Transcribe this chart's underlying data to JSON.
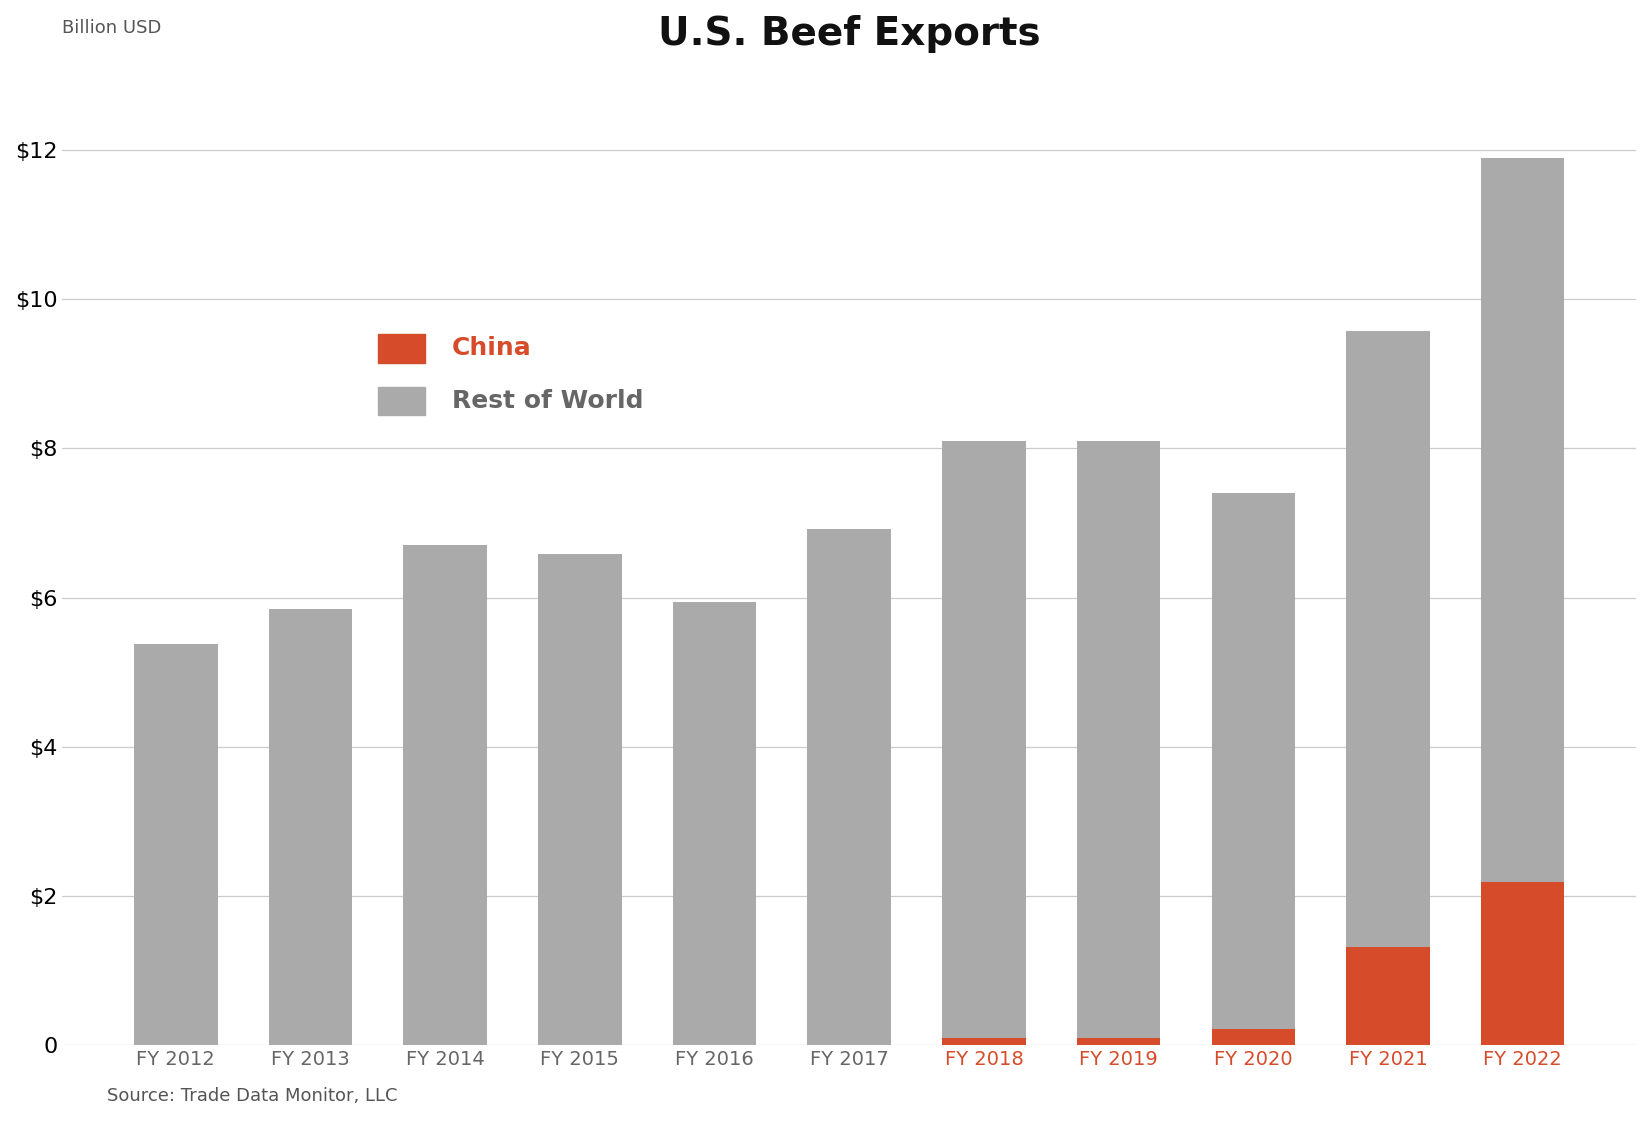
{
  "categories": [
    "FY 2012",
    "FY 2013",
    "FY 2014",
    "FY 2015",
    "FY 2016",
    "FY 2017",
    "FY 2018",
    "FY 2019",
    "FY 2020",
    "FY 2021",
    "FY 2022"
  ],
  "china": [
    0.0,
    0.0,
    0.0,
    0.0,
    0.0,
    0.0,
    0.1,
    0.1,
    0.22,
    1.32,
    2.18
  ],
  "rest_of_world": [
    5.38,
    5.84,
    6.7,
    6.58,
    5.94,
    6.92,
    8.0,
    8.0,
    7.18,
    8.25,
    9.72
  ],
  "china_color": "#d64c2a",
  "row_color": "#aaaaaa",
  "title": "U.S. Beef Exports",
  "title_fontsize": 28,
  "ylabel": "Billion USD",
  "ylabel_fontsize": 13,
  "ylim": [
    0,
    13.0
  ],
  "yticks": [
    0,
    2,
    4,
    6,
    8,
    10,
    12
  ],
  "ytick_labels": [
    "0",
    "$2",
    "$4",
    "$6",
    "$8",
    "$10",
    "$12"
  ],
  "source_text": "Source: Trade Data Monitor, LLC",
  "legend_china_label": "China",
  "legend_row_label": "Rest of World",
  "background_color": "#ffffff",
  "grid_color": "#cccccc",
  "bar_width": 0.62
}
